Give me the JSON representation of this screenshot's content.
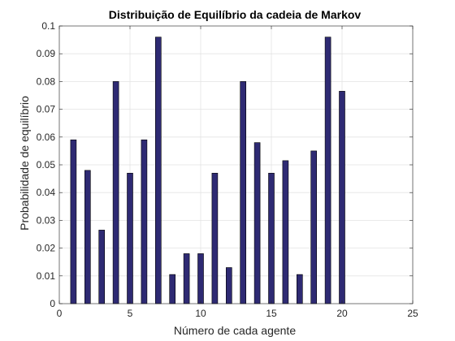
{
  "chart_data": {
    "type": "bar",
    "title": "Distribuição de Equilíbrio da cadeia de Markov",
    "xlabel": "Número de cada agente",
    "ylabel": "Probabilidade de equilíbrio",
    "xlim": [
      0,
      25
    ],
    "ylim": [
      0,
      0.1
    ],
    "xticks": [
      0,
      5,
      10,
      15,
      20,
      25
    ],
    "yticks": [
      0,
      0.01,
      0.02,
      0.03,
      0.04,
      0.05,
      0.06,
      0.07,
      0.08,
      0.09,
      0.1
    ],
    "xtick_labels": [
      "0",
      "5",
      "10",
      "15",
      "20",
      "25"
    ],
    "ytick_labels": [
      "0",
      "0.01",
      "0.02",
      "0.03",
      "0.04",
      "0.05",
      "0.06",
      "0.07",
      "0.08",
      "0.09",
      "0.1"
    ],
    "grid": true,
    "bar_color": "#2e2a73",
    "x": [
      1,
      2,
      3,
      4,
      5,
      6,
      7,
      8,
      9,
      10,
      11,
      12,
      13,
      14,
      15,
      16,
      17,
      18,
      19,
      20
    ],
    "values": [
      0.059,
      0.048,
      0.0265,
      0.08,
      0.047,
      0.059,
      0.096,
      0.0105,
      0.018,
      0.018,
      0.047,
      0.013,
      0.08,
      0.058,
      0.047,
      0.0515,
      0.0105,
      0.055,
      0.096,
      0.0765
    ]
  }
}
